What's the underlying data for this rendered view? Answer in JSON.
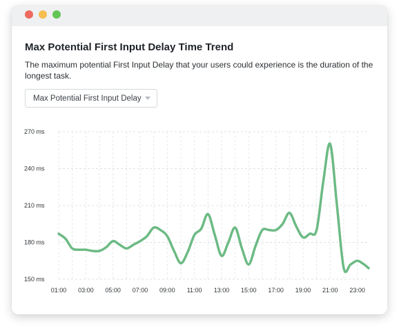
{
  "window": {
    "controls": [
      {
        "name": "close-dot",
        "color": "#ee6a5f"
      },
      {
        "name": "minimize-dot",
        "color": "#f5be4f"
      },
      {
        "name": "maximize-dot",
        "color": "#62c554"
      }
    ]
  },
  "card": {
    "title": "Max Potential First Input Delay Time Trend",
    "description": "The maximum potential First Input Delay that your users could experience is the duration of the longest task."
  },
  "metric_select": {
    "selected": "Max Potential First Input Delay"
  },
  "chart_data": {
    "type": "line",
    "title": "",
    "xlabel": "",
    "ylabel": "",
    "y_unit": "ms",
    "ylim": [
      150,
      270
    ],
    "y_ticks": [
      150,
      180,
      210,
      240,
      270
    ],
    "x_tick_labels": [
      "01:00",
      "03:00",
      "05:00",
      "07:00",
      "09:00",
      "11:00",
      "13:00",
      "15:00",
      "17:00",
      "19:00",
      "21:00",
      "23:00"
    ],
    "grid": true,
    "line_color": "#6cba84",
    "series": [
      {
        "x": [
          "01:00",
          "01:30",
          "02:00",
          "02:30",
          "03:00",
          "03:30",
          "04:00",
          "04:30",
          "05:00",
          "05:30",
          "06:00",
          "06:30",
          "07:00",
          "07:30",
          "08:00",
          "08:30",
          "09:00",
          "09:30",
          "10:00",
          "10:30",
          "11:00",
          "11:30",
          "12:00",
          "12:30",
          "13:00",
          "13:30",
          "14:00",
          "14:30",
          "15:00",
          "15:30",
          "16:00",
          "16:30",
          "17:00",
          "17:30",
          "18:00",
          "18:30",
          "19:00",
          "19:30",
          "20:00",
          "20:30",
          "21:00",
          "21:30",
          "22:00",
          "22:30",
          "23:00",
          "23:30",
          "23:50"
        ],
        "values": [
          187,
          183,
          175,
          174,
          174,
          173,
          173,
          176,
          181,
          178,
          175,
          178,
          181,
          185,
          192,
          190,
          185,
          173,
          163,
          172,
          186,
          191,
          203,
          186,
          169,
          180,
          192,
          175,
          162,
          177,
          190,
          190,
          190,
          195,
          204,
          193,
          184,
          187,
          190,
          230,
          260,
          210,
          159,
          162,
          165,
          162,
          159
        ]
      }
    ]
  }
}
